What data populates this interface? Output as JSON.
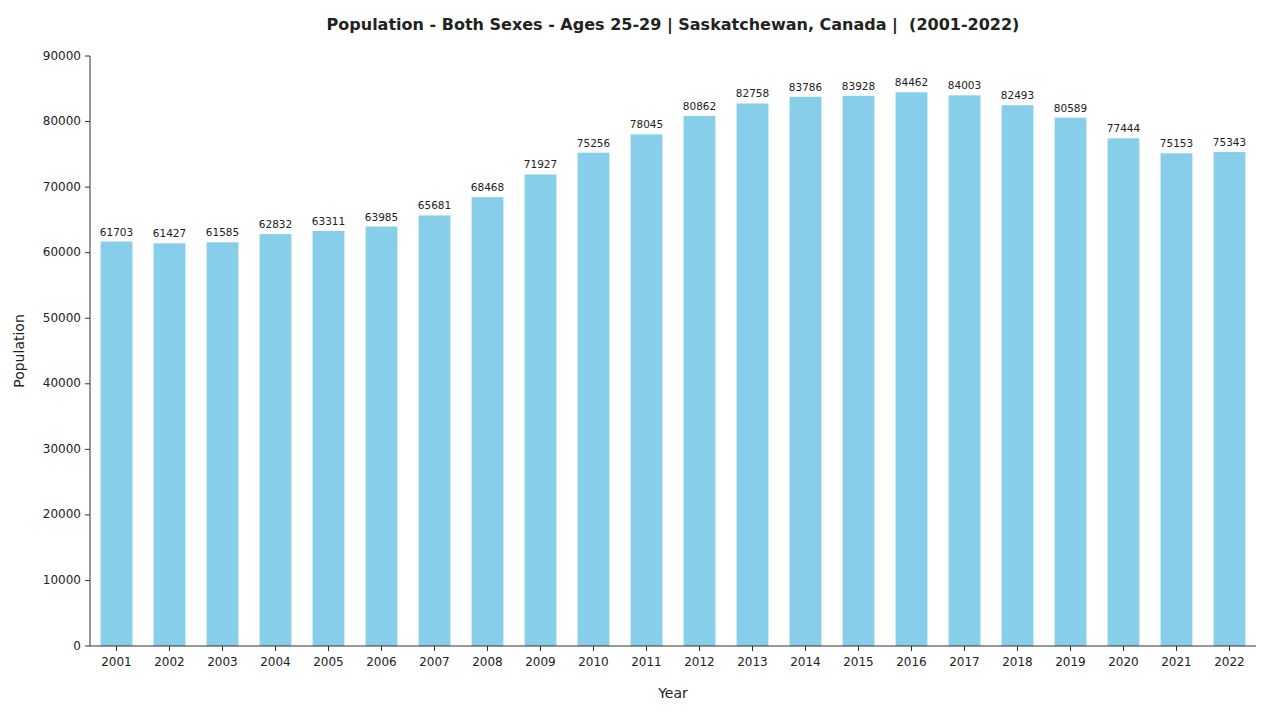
{
  "chart_data": {
    "type": "bar",
    "title": "Population - Both Sexes - Ages 25-29 | Saskatchewan, Canada |  (2001-2022)",
    "xlabel": "Year",
    "ylabel": "Population",
    "categories": [
      "2001",
      "2002",
      "2003",
      "2004",
      "2005",
      "2006",
      "2007",
      "2008",
      "2009",
      "2010",
      "2011",
      "2012",
      "2013",
      "2014",
      "2015",
      "2016",
      "2017",
      "2018",
      "2019",
      "2020",
      "2021",
      "2022"
    ],
    "values": [
      61703,
      61427,
      61585,
      62832,
      63311,
      63985,
      65681,
      68468,
      71927,
      75256,
      78045,
      80862,
      82758,
      83786,
      83928,
      84462,
      84003,
      82493,
      80589,
      77444,
      75153,
      75343
    ],
    "color": "#87CEEB",
    "ylim": [
      0,
      90000
    ],
    "yticks": [
      0,
      10000,
      20000,
      30000,
      40000,
      50000,
      60000,
      70000,
      80000,
      90000
    ],
    "grid": false,
    "data_labels": true
  }
}
